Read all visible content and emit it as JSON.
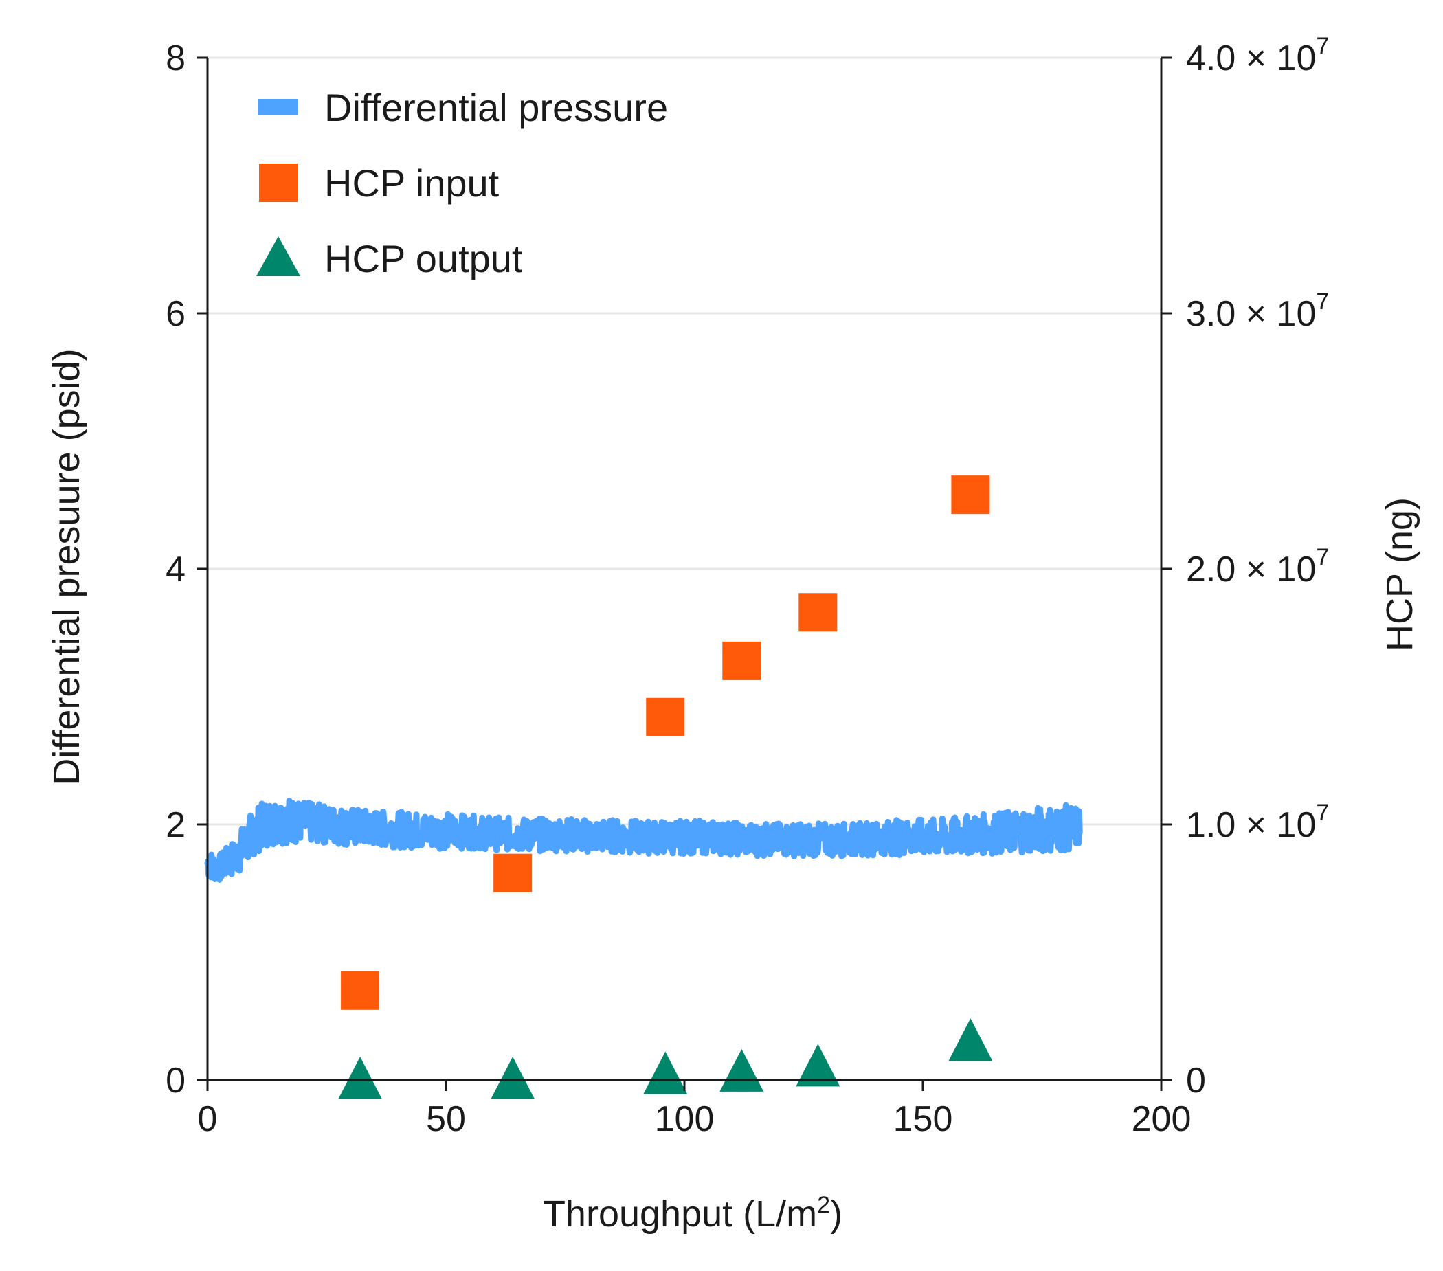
{
  "chart_data": {
    "type": "scatter",
    "title": "",
    "xlabel": "Throughput (L/m²)",
    "ylabel": "Differential presuure (psid)",
    "y2label": "HCP (ng)",
    "xlim": [
      0,
      200
    ],
    "ylim": [
      0,
      8
    ],
    "y2lim": [
      0,
      40000000
    ],
    "xticks": [
      "0",
      "50",
      "100",
      "150",
      "200"
    ],
    "yticks": [
      "0",
      "2",
      "4",
      "6",
      "8"
    ],
    "y2ticks": [
      {
        "mantissa": "0",
        "exp": ""
      },
      {
        "mantissa": "1.0 × 10",
        "exp": "7"
      },
      {
        "mantissa": "2.0 × 10",
        "exp": "7"
      },
      {
        "mantissa": "3.0 × 10",
        "exp": "7"
      },
      {
        "mantissa": "4.0 × 10",
        "exp": "7"
      }
    ],
    "grid": "horizontal",
    "legend_position": "top-left",
    "series": [
      {
        "name": "Differential pressure",
        "marker": "band",
        "axis": "left",
        "color": "#4da3ff",
        "x": [
          0,
          2,
          4,
          6,
          8,
          10,
          12,
          14,
          16,
          18,
          20,
          25,
          30,
          35,
          40,
          45,
          50,
          55,
          60,
          65,
          70,
          75,
          80,
          85,
          90,
          95,
          100,
          105,
          110,
          115,
          120,
          125,
          130,
          135,
          140,
          145,
          150,
          155,
          160,
          165,
          170,
          175,
          180,
          183
        ],
        "y": [
          1.7,
          1.65,
          1.7,
          1.75,
          1.85,
          1.95,
          2.0,
          2.02,
          2.03,
          2.03,
          2.02,
          2.0,
          1.98,
          1.97,
          1.96,
          1.95,
          1.95,
          1.94,
          1.93,
          1.92,
          1.92,
          1.92,
          1.91,
          1.91,
          1.9,
          1.9,
          1.9,
          1.9,
          1.89,
          1.88,
          1.88,
          1.88,
          1.88,
          1.88,
          1.89,
          1.9,
          1.9,
          1.9,
          1.92,
          1.93,
          1.95,
          1.96,
          1.97,
          1.98
        ],
        "spread": [
          0.12,
          0.1,
          0.12,
          0.15,
          0.18,
          0.18,
          0.18,
          0.18,
          0.18,
          0.18,
          0.16,
          0.15,
          0.15,
          0.14,
          0.14,
          0.14,
          0.14,
          0.13,
          0.13,
          0.13,
          0.13,
          0.13,
          0.13,
          0.13,
          0.13,
          0.13,
          0.13,
          0.13,
          0.13,
          0.13,
          0.13,
          0.13,
          0.13,
          0.13,
          0.13,
          0.14,
          0.14,
          0.15,
          0.15,
          0.16,
          0.17,
          0.18,
          0.18,
          0.16
        ]
      },
      {
        "name": "HCP input",
        "marker": "square",
        "axis": "right",
        "color": "#ff5a0a",
        "x": [
          32,
          64,
          96,
          112,
          128,
          160
        ],
        "y": [
          3500000,
          8100000,
          14200000,
          16400000,
          18300000,
          22900000
        ]
      },
      {
        "name": "HCP output",
        "marker": "triangle",
        "axis": "right",
        "color": "#00866b",
        "x": [
          32,
          64,
          96,
          112,
          128,
          160
        ],
        "y": [
          0,
          0,
          200000,
          300000,
          500000,
          1500000
        ]
      }
    ]
  }
}
